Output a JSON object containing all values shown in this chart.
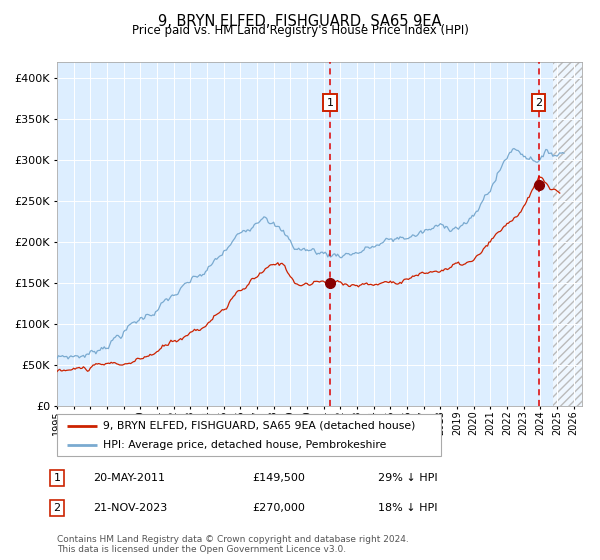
{
  "title": "9, BRYN ELFED, FISHGUARD, SA65 9EA",
  "subtitle": "Price paid vs. HM Land Registry's House Price Index (HPI)",
  "ylim": [
    0,
    420000
  ],
  "xlim_start": 1995.0,
  "xlim_end": 2026.5,
  "yticks": [
    0,
    50000,
    100000,
    150000,
    200000,
    250000,
    300000,
    350000,
    400000
  ],
  "xtick_years": [
    1995,
    1996,
    1997,
    1998,
    1999,
    2000,
    2001,
    2002,
    2003,
    2004,
    2005,
    2006,
    2007,
    2008,
    2009,
    2010,
    2011,
    2012,
    2013,
    2014,
    2015,
    2016,
    2017,
    2018,
    2019,
    2020,
    2021,
    2022,
    2023,
    2024,
    2025,
    2026
  ],
  "hpi_color": "#7aaad0",
  "price_color": "#cc2200",
  "bg_color": "#ddeeff",
  "sale1_x": 2011.38,
  "sale1_y": 149500,
  "sale2_x": 2023.9,
  "sale2_y": 270000,
  "sale1_date": "20-MAY-2011",
  "sale1_price": "£149,500",
  "sale1_hpi": "29% ↓ HPI",
  "sale2_date": "21-NOV-2023",
  "sale2_price": "£270,000",
  "sale2_hpi": "18% ↓ HPI",
  "legend_line1": "9, BRYN ELFED, FISHGUARD, SA65 9EA (detached house)",
  "legend_line2": "HPI: Average price, detached house, Pembrokeshire",
  "footnote": "Contains HM Land Registry data © Crown copyright and database right 2024.\nThis data is licensed under the Open Government Licence v3.0.",
  "hatch_region_start": 2024.75,
  "title_fontsize": 10.5,
  "subtitle_fontsize": 8.5
}
